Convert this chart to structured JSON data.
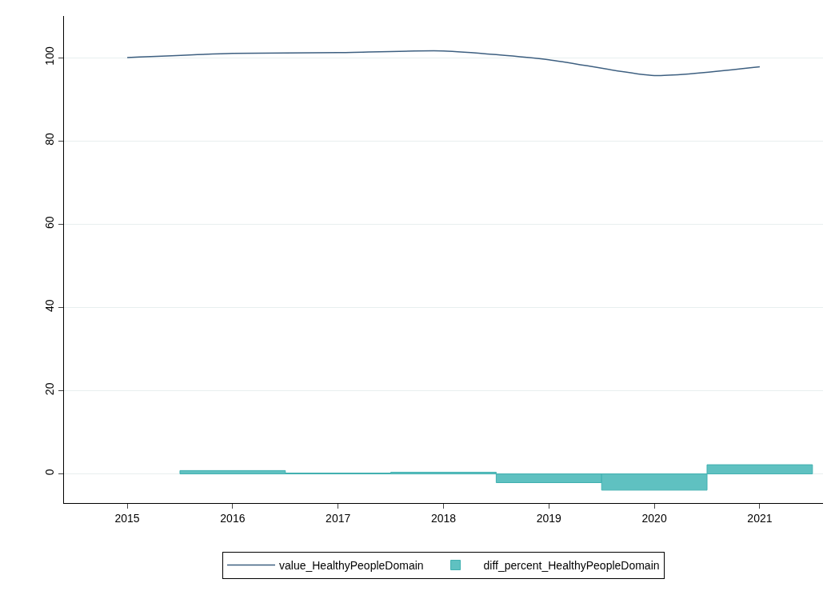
{
  "chart_data": {
    "type": "line",
    "x": [
      2015,
      2016,
      2017,
      2018,
      2019,
      2020,
      2021
    ],
    "series": [
      {
        "name": "value_HealthyPeopleDomain",
        "color": "#3d5f80",
        "values": [
          100,
          101,
          101.2,
          101.6,
          99.5,
          95.7,
          97.8
        ]
      },
      {
        "name": "diff_percent_HealthyPeopleDomain",
        "type": "bar",
        "color": "#5fc1c1",
        "values": [
          null,
          0.8,
          0.2,
          0.4,
          -2.1,
          -3.9,
          2.2
        ]
      }
    ],
    "xlim": [
      2014.4,
      2021.6
    ],
    "xticks": [
      2015,
      2016,
      2017,
      2018,
      2019,
      2020,
      2021
    ],
    "ylim": [
      -7,
      110
    ],
    "yticks": [
      0,
      20,
      40,
      60,
      80,
      100
    ],
    "grid": "y",
    "legend": "bottom",
    "line_style": "solid",
    "marker": "none"
  }
}
